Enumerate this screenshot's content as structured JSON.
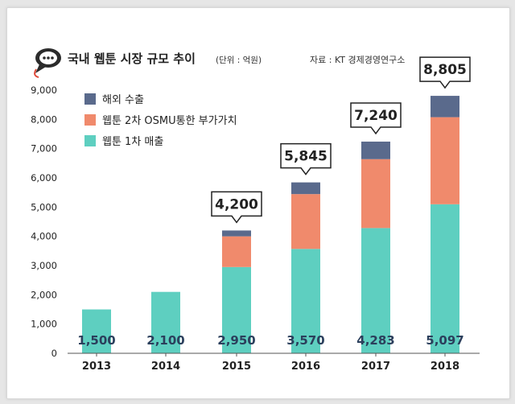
{
  "header": {
    "title": "국내 웹툰 시장 규모 추이",
    "unit": "(단위 : 억원)",
    "source": "자료 : KT 경제경영연구소"
  },
  "colors": {
    "overseas": "#5a6a8c",
    "secondary": "#f08a6c",
    "primary": "#5ecfc0",
    "icon": "#2b2b2b",
    "icon_accent": "#e04a3a"
  },
  "chart_data": {
    "type": "bar",
    "stacked": true,
    "categories": [
      "2013",
      "2014",
      "2015",
      "2016",
      "2017",
      "2018"
    ],
    "series": [
      {
        "name": "웹툰 1차 매출",
        "values": [
          1500,
          2100,
          2950,
          3570,
          4283,
          5097
        ]
      },
      {
        "name": "웹툰 2차 OSMU통한 부가가치",
        "values": [
          0,
          0,
          1050,
          1875,
          2357,
          2978
        ]
      },
      {
        "name": "해외 수출",
        "values": [
          0,
          0,
          200,
          400,
          600,
          730
        ]
      }
    ],
    "totals": [
      null,
      null,
      "4,200",
      "5,845",
      "7,240",
      "8,805"
    ],
    "base_labels": [
      "1,500",
      "2,100",
      "2,950",
      "3,570",
      "4,283",
      "5,097"
    ],
    "ylim": [
      0,
      9000
    ],
    "yticks": [
      "0",
      "1,000",
      "2,000",
      "3,000",
      "4,000",
      "5,000",
      "6,000",
      "7,000",
      "8,000",
      "9,000"
    ],
    "legend": [
      "해외 수출",
      "웹툰 2차 OSMU통한 부가가치",
      "웹툰 1차 매출"
    ],
    "legend_position": "top-left",
    "grid": false
  }
}
